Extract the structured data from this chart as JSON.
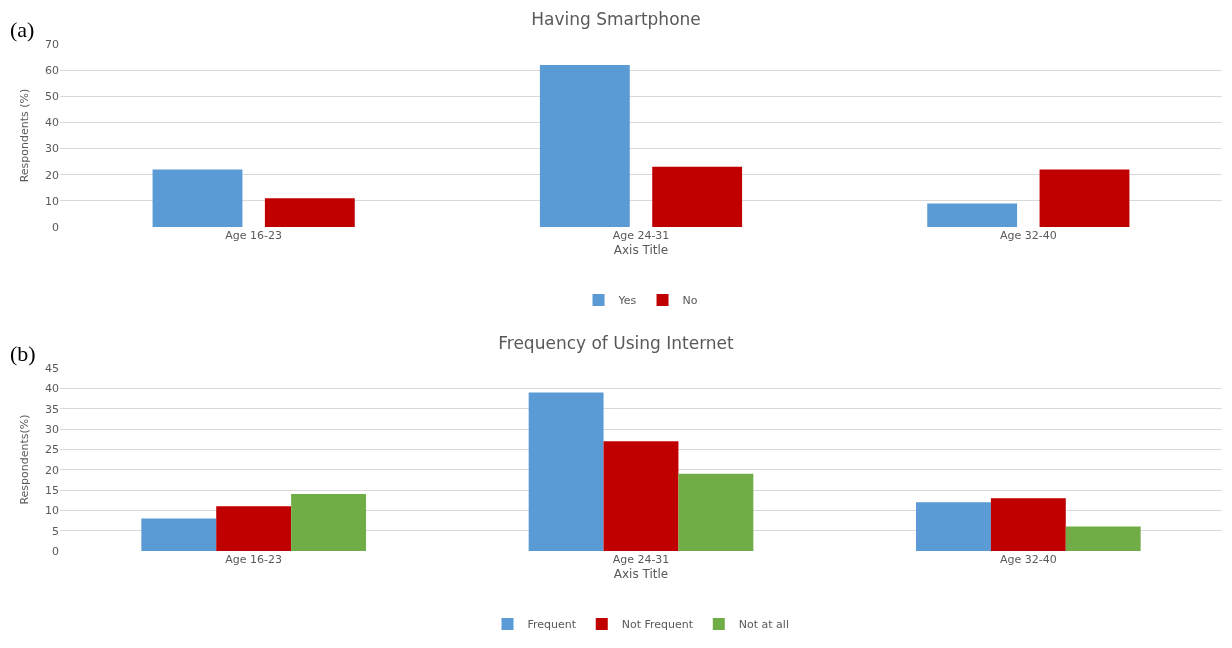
{
  "chart_data": [
    {
      "type": "bar",
      "title": "Having Smartphone",
      "xlabel": "Axis Title",
      "ylabel": "Respondents (%)",
      "annotations": [
        "(a)"
      ],
      "categories": [
        "Age 16-23",
        "Age 24-31",
        "Age 32-40"
      ],
      "series": [
        {
          "name": "Yes",
          "color": "#5b9bd5",
          "values": [
            22,
            62,
            9
          ]
        },
        {
          "name": "No",
          "color": "#c00000",
          "values": [
            11,
            23,
            22
          ]
        }
      ],
      "ylim": [
        0,
        70
      ],
      "yticks": [
        0,
        10,
        20,
        30,
        40,
        50,
        60,
        70
      ],
      "grid": "y",
      "legend": "bottom"
    },
    {
      "type": "bar",
      "title": "Frequency of Using Internet",
      "xlabel": "Axis Title",
      "ylabel": "Respondents(%)",
      "annotations": [
        "(b)"
      ],
      "categories": [
        "Age 16-23",
        "Age 24-31",
        "Age 32-40"
      ],
      "series": [
        {
          "name": "Frequent",
          "color": "#5b9bd5",
          "values": [
            8,
            39,
            12
          ]
        },
        {
          "name": "Not Frequent",
          "color": "#c00000",
          "values": [
            11,
            27,
            13
          ]
        },
        {
          "name": "Not at all",
          "color": "#70ad47",
          "values": [
            14,
            19,
            6
          ]
        }
      ],
      "ylim": [
        0,
        45
      ],
      "yticks": [
        0,
        5,
        10,
        15,
        20,
        25,
        30,
        35,
        40,
        45
      ],
      "grid": "y",
      "legend": "bottom"
    }
  ]
}
